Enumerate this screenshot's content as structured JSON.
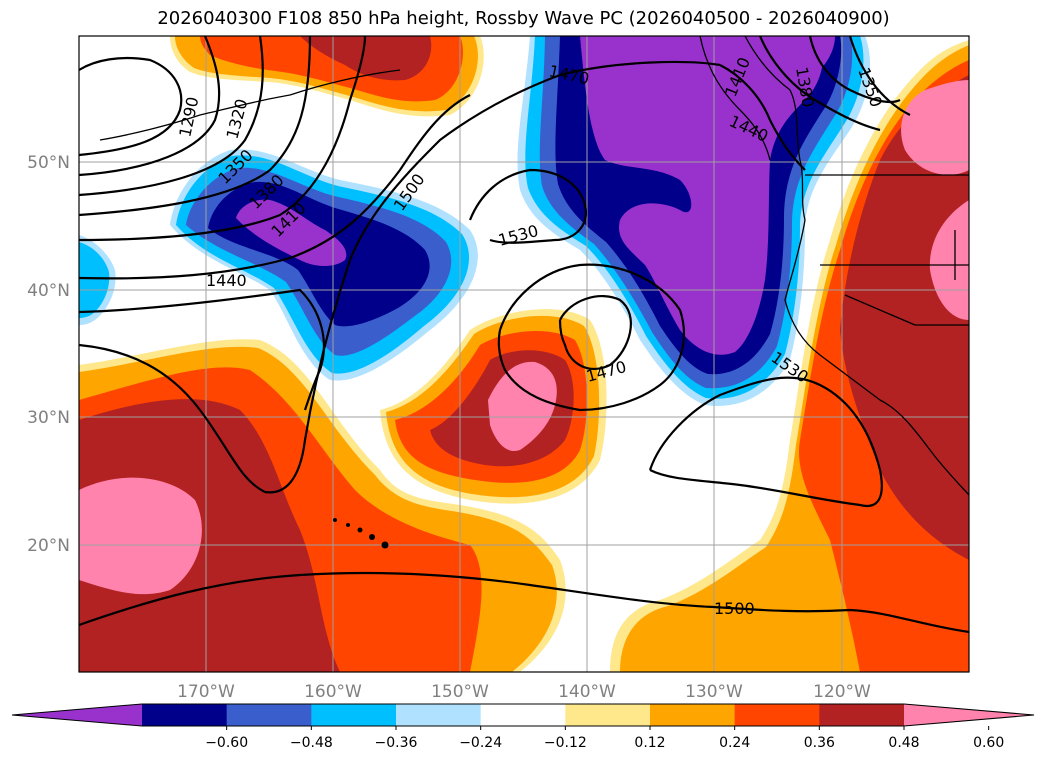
{
  "title": "2026040300 F108 850 hPa height, Rossby Wave PC (2026040500 - 2026040900)",
  "lat_labels": [
    "50°N",
    "40°N",
    "30°N",
    "20°N"
  ],
  "lon_labels": [
    "170°W",
    "160°W",
    "150°W",
    "140°W",
    "130°W",
    "120°W"
  ],
  "contour_labels": [
    "1290",
    "1320",
    "1350",
    "1380",
    "1410",
    "1440",
    "1470",
    "1500",
    "1530",
    "1470",
    "1410",
    "1440",
    "1380",
    "1350",
    "1530",
    "1500"
  ],
  "colorbar": {
    "ticks": [
      "−0.60",
      "−0.48",
      "−0.36",
      "−0.24",
      "−0.12",
      "0.12",
      "0.24",
      "0.36",
      "0.48",
      "0.60"
    ],
    "colors": [
      "#9932cc",
      "#00008b",
      "#3a5fcd",
      "#00bfff",
      "#b0e2ff",
      "#ffffff",
      "#ffe78c",
      "#ffa500",
      "#ff4500",
      "#b22222",
      "#ff83ac"
    ]
  },
  "palette": {
    "purple": "#9932cc",
    "navy": "#00008b",
    "blue": "#3a5fcd",
    "cyan": "#00bfff",
    "lightblue": "#b0e2ff",
    "yellow": "#ffe78c",
    "orange": "#ffa500",
    "redorange": "#ff4500",
    "darkred": "#b22222",
    "pink": "#ff83ac"
  }
}
